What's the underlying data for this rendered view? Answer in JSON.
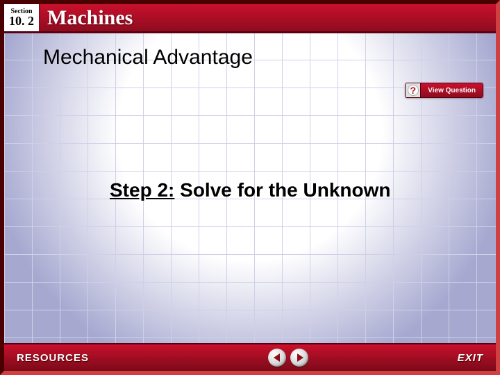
{
  "header": {
    "section_label": "Section",
    "section_number": "10. 2",
    "title": "Machines"
  },
  "content": {
    "title": "Mechanical Advantage",
    "step_label": "Step 2:",
    "step_text": " Solve for the Unknown"
  },
  "view_question": {
    "icon_glyph": "?",
    "label": "View Question"
  },
  "footer": {
    "resources": "RESOURCES",
    "exit": "EXIT"
  },
  "colors": {
    "red_primary": "#c9102d",
    "red_dark": "#8e0c1e",
    "grid": "#cfd0e8",
    "bg": "#a6a8d0"
  }
}
